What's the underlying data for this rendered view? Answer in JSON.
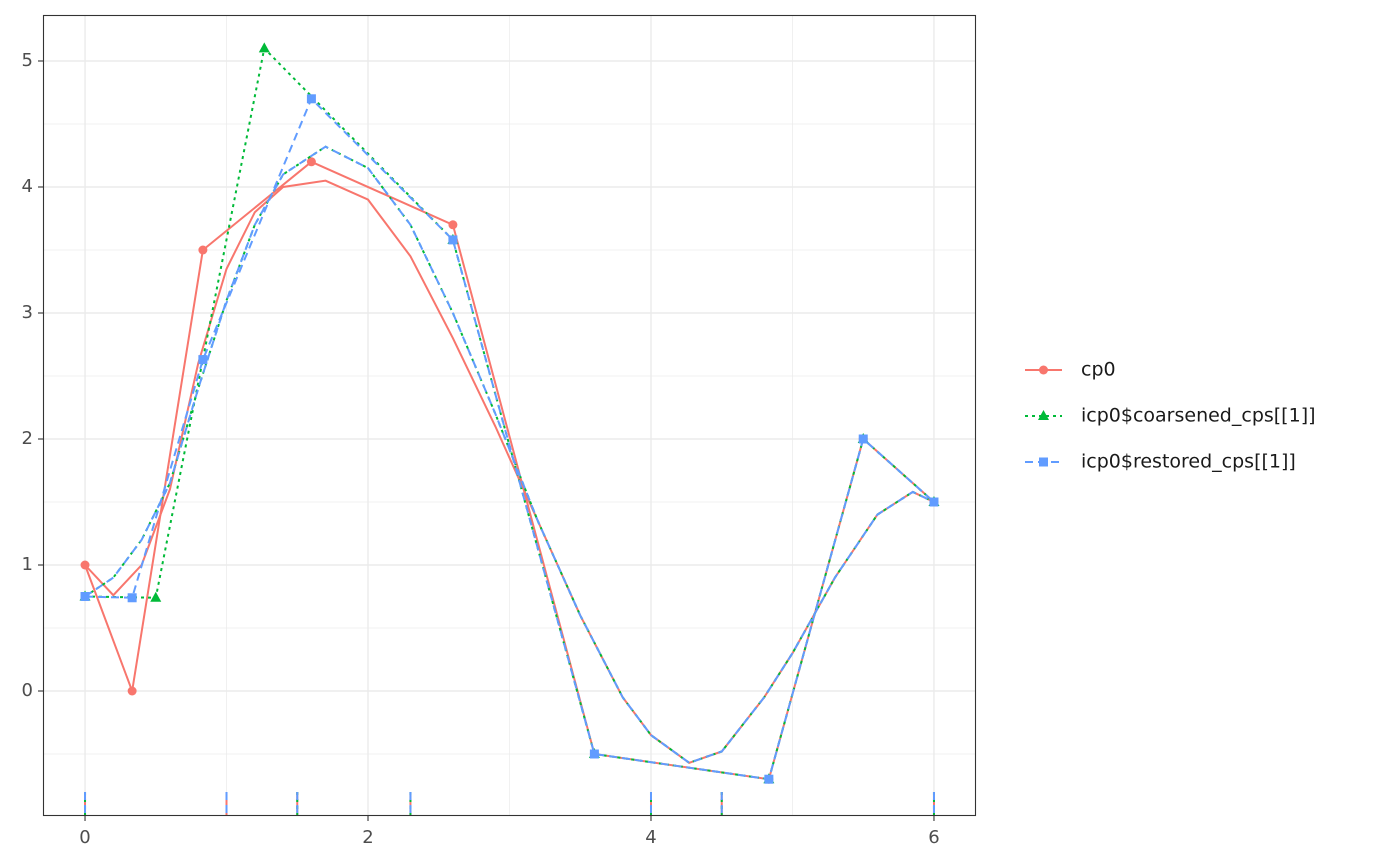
{
  "chart_data": {
    "type": "line",
    "xlim": [
      -0.297,
      6.297
    ],
    "ylim": [
      -0.992,
      5.365
    ],
    "xticks": [
      0,
      2,
      4,
      6
    ],
    "yticks": [
      0,
      1,
      2,
      3,
      4,
      5
    ],
    "x_minor_grid": [
      1,
      3,
      5
    ],
    "y_minor_grid": [
      -0.5,
      0.5,
      1.5,
      2.5,
      3.5,
      4.5
    ],
    "grid": true,
    "legend": "right",
    "series": [
      {
        "name": "cp0",
        "color": "#F8766D",
        "linestyle": "solid",
        "marker": "circle",
        "x": [
          0,
          0.333,
          0.833,
          1.6,
          2.6,
          3.6,
          4.833,
          5.5,
          6
        ],
        "values": [
          1.0,
          0,
          3.5,
          4.2,
          3.7,
          -0.5,
          -0.7,
          2.0,
          1.5
        ],
        "curve_x": [
          0,
          0.2,
          0.4,
          0.6,
          0.8,
          1.0,
          1.2,
          1.4,
          1.7,
          2.0,
          2.3,
          2.6,
          2.9,
          3.2,
          3.5,
          3.8,
          4.0,
          4.27,
          4.5,
          4.8,
          5.0,
          5.3,
          5.6,
          5.85,
          6.0
        ],
        "curve_values": [
          1.0,
          0.76,
          1.0,
          1.6,
          2.6,
          3.35,
          3.8,
          4.0,
          4.05,
          3.9,
          3.45,
          2.8,
          2.1,
          1.35,
          0.6,
          -0.05,
          -0.35,
          -0.57,
          -0.48,
          -0.05,
          0.3,
          0.9,
          1.4,
          1.58,
          1.5
        ],
        "knots": [
          0,
          1,
          1.5,
          2.3,
          4,
          4.5,
          6
        ]
      },
      {
        "name": "icp0$coarsened_cps[[1]]",
        "color": "#00BA38",
        "linestyle": "dotted",
        "marker": "triangle",
        "x": [
          0,
          0.5,
          1.267,
          2.6,
          3.6,
          4.833,
          5.5,
          6
        ],
        "values": [
          0.75,
          0.74,
          5.1,
          3.58,
          -0.5,
          -0.7,
          2.0,
          1.5
        ],
        "curve_x": [
          0,
          0.2,
          0.4,
          0.6,
          0.8,
          1.0,
          1.2,
          1.4,
          1.7,
          2.0,
          2.3,
          2.6,
          2.9,
          3.2,
          3.5,
          3.8,
          4.0,
          4.27,
          4.5,
          4.8,
          5.0,
          5.3,
          5.6,
          5.85,
          6.0
        ],
        "curve_values": [
          0.75,
          0.9,
          1.2,
          1.65,
          2.4,
          3.1,
          3.7,
          4.1,
          4.32,
          4.15,
          3.7,
          3.0,
          2.2,
          1.35,
          0.6,
          -0.05,
          -0.35,
          -0.57,
          -0.48,
          -0.05,
          0.3,
          0.9,
          1.4,
          1.58,
          1.5
        ],
        "knots": [
          0,
          1.5,
          2.3,
          4,
          4.5,
          6
        ]
      },
      {
        "name": "icp0$restored_cps[[1]]",
        "color": "#619CFF",
        "linestyle": "dashed",
        "marker": "square",
        "x": [
          0,
          0.333,
          0.833,
          1.6,
          2.6,
          3.6,
          4.833,
          5.5,
          6
        ],
        "values": [
          0.75,
          0.74,
          2.63,
          4.7,
          3.58,
          -0.5,
          -0.7,
          2.0,
          1.5
        ],
        "curve_x": [
          0,
          0.2,
          0.4,
          0.6,
          0.8,
          1.0,
          1.2,
          1.4,
          1.7,
          2.0,
          2.3,
          2.6,
          2.9,
          3.2,
          3.5,
          3.8,
          4.0,
          4.27,
          4.5,
          4.8,
          5.0,
          5.3,
          5.6,
          5.85,
          6.0
        ],
        "curve_values": [
          0.75,
          0.9,
          1.2,
          1.65,
          2.4,
          3.1,
          3.7,
          4.1,
          4.32,
          4.15,
          3.7,
          3.0,
          2.2,
          1.35,
          0.6,
          -0.05,
          -0.35,
          -0.57,
          -0.48,
          -0.05,
          0.3,
          0.9,
          1.4,
          1.58,
          1.5
        ],
        "knots": [
          0,
          1,
          1.5,
          2.3,
          4,
          4.5,
          6
        ]
      }
    ]
  }
}
